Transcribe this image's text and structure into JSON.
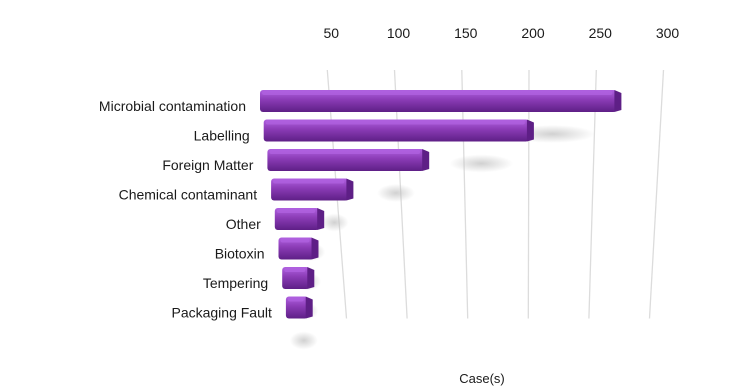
{
  "chart_data": {
    "type": "bar",
    "orientation": "horizontal",
    "style": "3d-perspective",
    "categories": [
      "Microbial contamination",
      "Labelling",
      "Foreign Matter",
      "Chemical contaminant",
      "Other",
      "Biotoxin",
      "Tempering",
      "Packaging Fault"
    ],
    "values": [
      265,
      200,
      120,
      60,
      35,
      28,
      22,
      18
    ],
    "x_ticks": [
      "50",
      "100",
      "150",
      "200",
      "250",
      "300"
    ],
    "xlim": [
      0,
      300
    ],
    "xlabel": "Case(s)",
    "grid": true,
    "bar_color": "#8a3bb5",
    "bar_color_dark": "#5e1f86",
    "bar_color_light": "#b061e0"
  }
}
